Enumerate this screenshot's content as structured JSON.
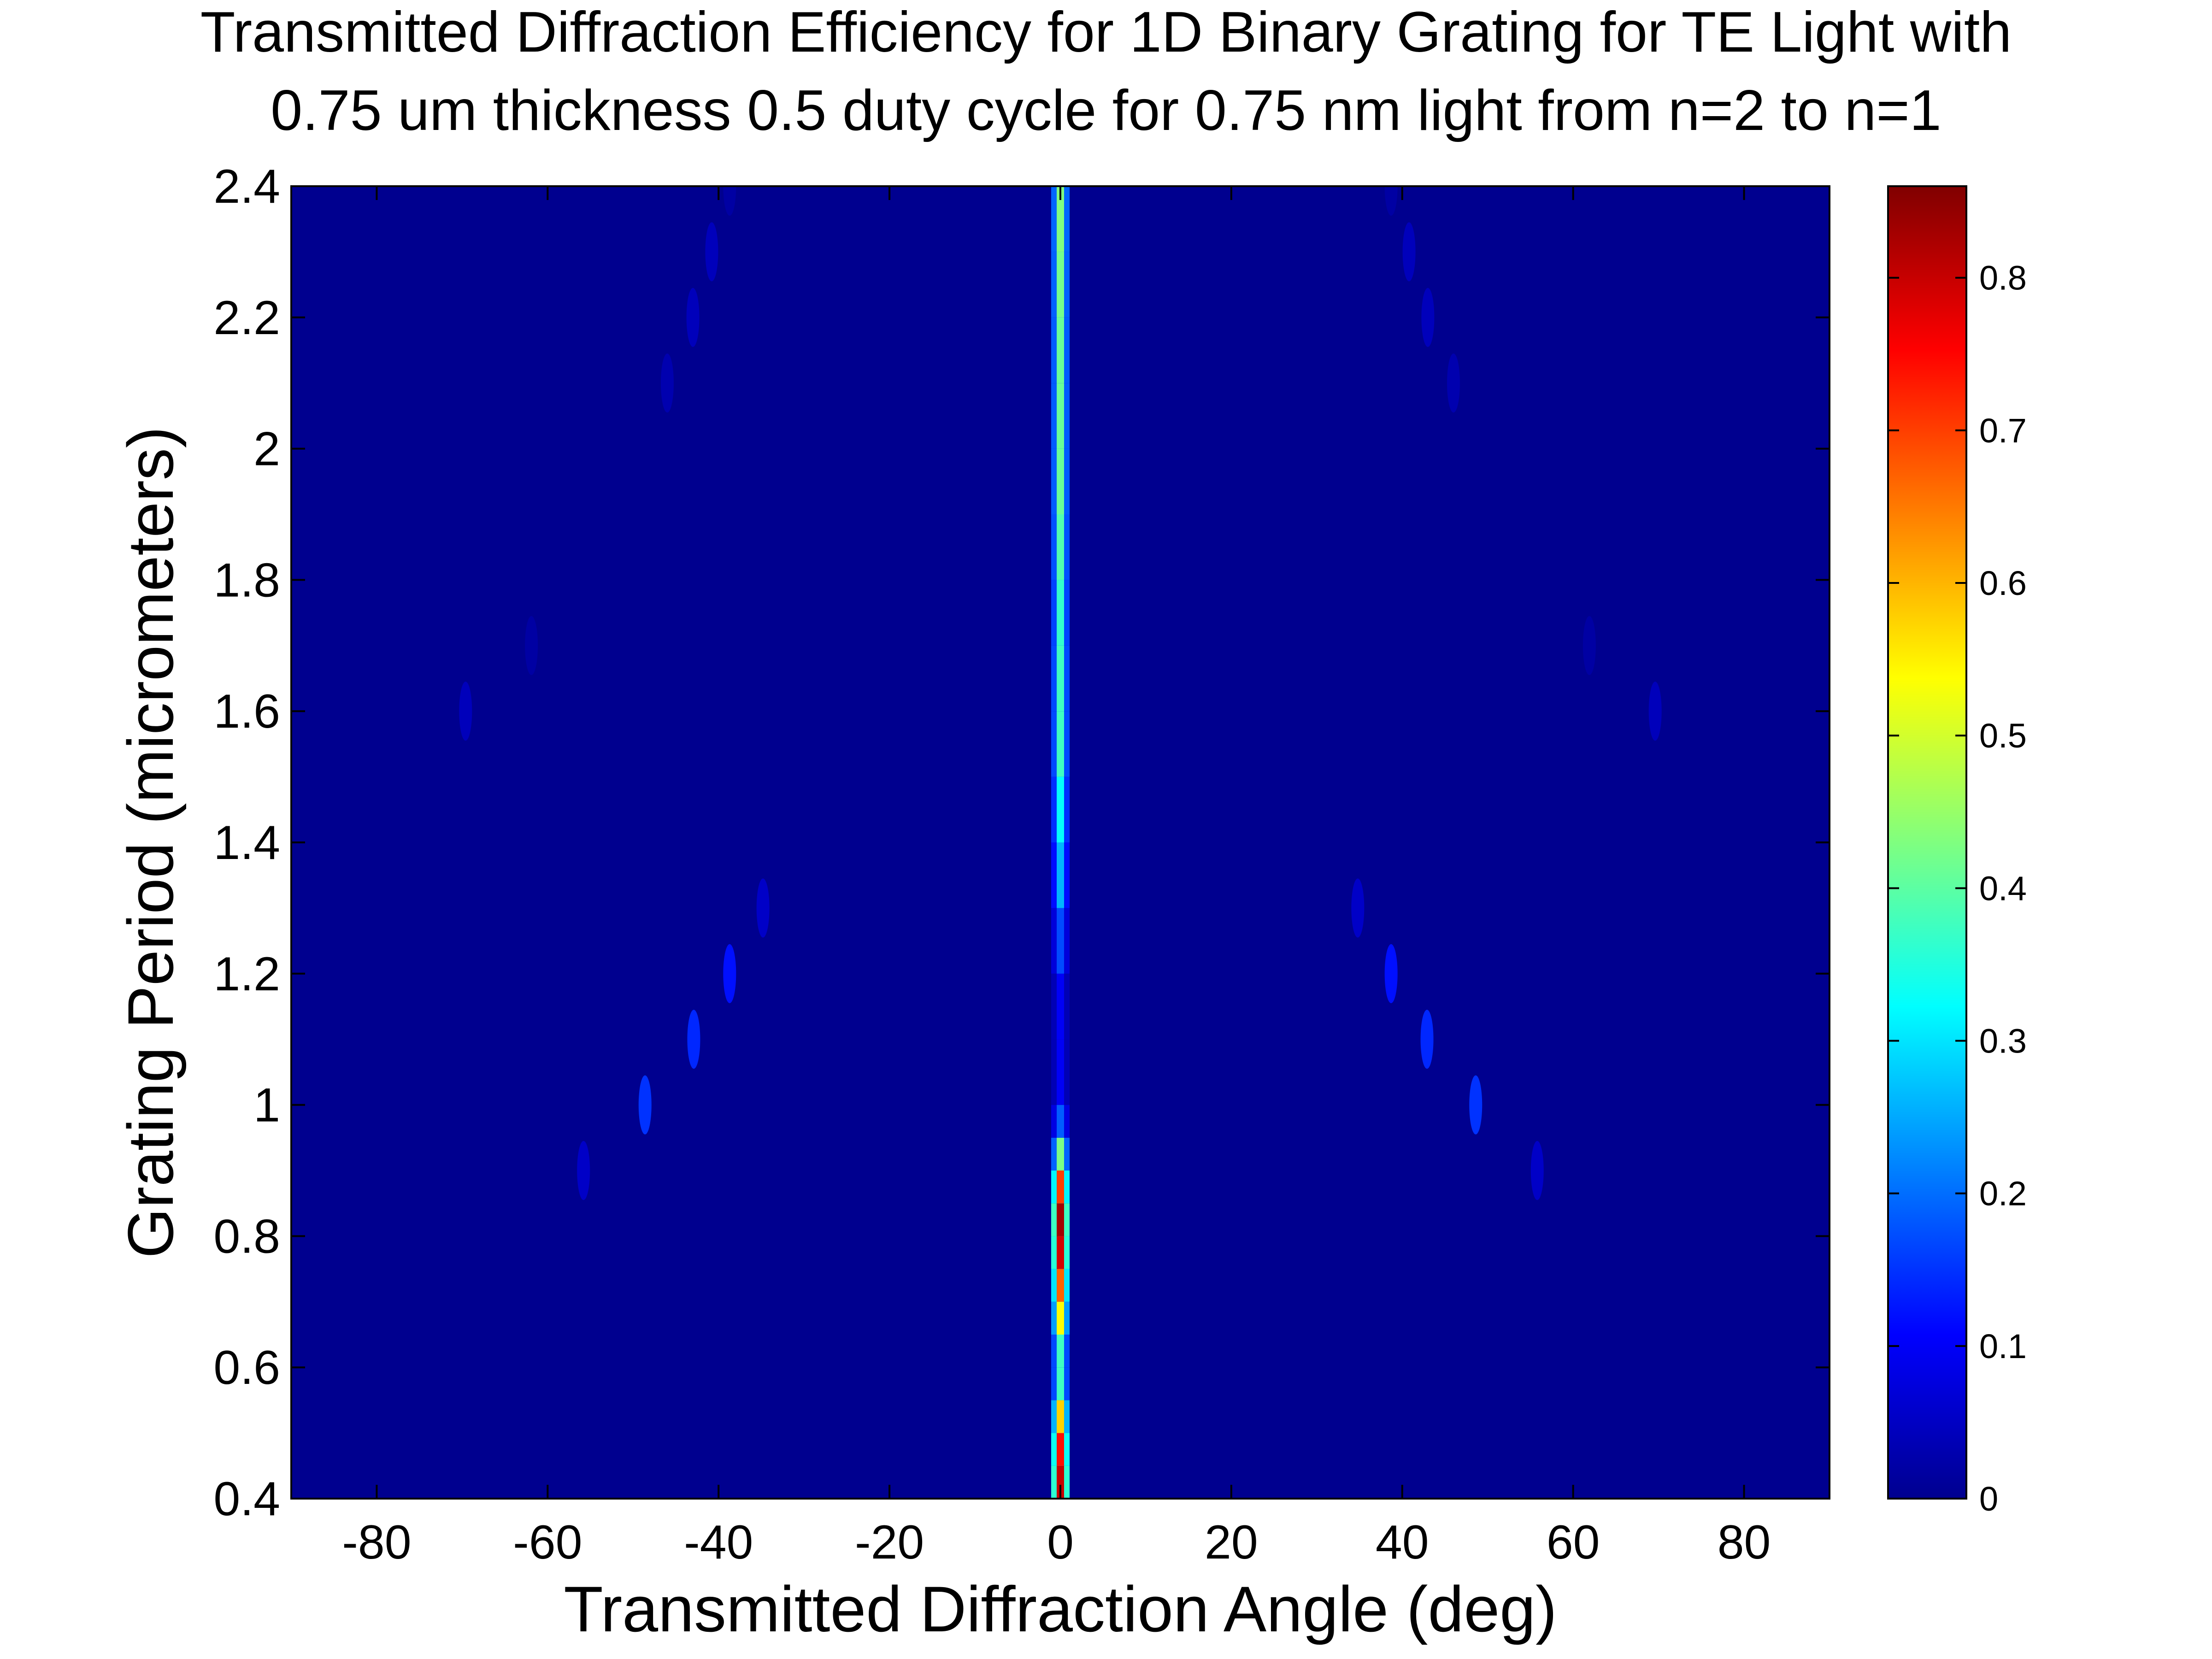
{
  "chart_data": {
    "type": "heatmap",
    "title": "Transmitted Diffraction Efficiency for 1D Binary Grating for TE Light with",
    "subtitle": "0.75 um thickness 0.5 duty cycle for 0.75 nm light from n=2 to n=1",
    "xlabel": "Transmitted Diffraction Angle (deg)",
    "ylabel": "Grating Period (micrometers)",
    "xlim": [
      -90,
      90
    ],
    "ylim": [
      0.4,
      2.4
    ],
    "x_ticks": [
      -80,
      -60,
      -40,
      -20,
      0,
      20,
      40,
      60,
      80
    ],
    "x_tick_labels": [
      "-80",
      "-60",
      "-40",
      "-20",
      "0",
      "20",
      "40",
      "60",
      "80"
    ],
    "y_ticks": [
      0.4,
      0.6,
      0.8,
      1.0,
      1.2,
      1.4,
      1.6,
      1.8,
      2.0,
      2.2,
      2.4
    ],
    "y_tick_labels": [
      "0.4",
      "0.6",
      "0.8",
      "1",
      "1.2",
      "1.4",
      "1.6",
      "1.8",
      "2",
      "2.2",
      "2.4"
    ],
    "colorbar": {
      "colormap": "jet",
      "range": [
        0,
        0.86
      ],
      "ticks": [
        0,
        0.1,
        0.2,
        0.3,
        0.4,
        0.5,
        0.6,
        0.7,
        0.8
      ],
      "tick_labels": [
        "0",
        "0.1",
        "0.2",
        "0.3",
        "0.4",
        "0.5",
        "0.6",
        "0.7",
        "0.8"
      ]
    },
    "background_value": 0,
    "zero_order": {
      "angle": 0,
      "profile": [
        {
          "period": 0.4,
          "efficiency": 0.82
        },
        {
          "period": 0.45,
          "efficiency": 0.78
        },
        {
          "period": 0.5,
          "efficiency": 0.7
        },
        {
          "period": 0.55,
          "efficiency": 0.45
        },
        {
          "period": 0.6,
          "efficiency": 0.3
        },
        {
          "period": 0.65,
          "efficiency": 0.45
        },
        {
          "period": 0.7,
          "efficiency": 0.62
        },
        {
          "period": 0.75,
          "efficiency": 0.72
        },
        {
          "period": 0.8,
          "efficiency": 0.86
        },
        {
          "period": 0.85,
          "efficiency": 0.8
        },
        {
          "period": 0.9,
          "efficiency": 0.6
        },
        {
          "period": 0.95,
          "efficiency": 0.25
        },
        {
          "period": 1.0,
          "efficiency": 0.12
        },
        {
          "period": 1.1,
          "efficiency": 0.08
        },
        {
          "period": 1.2,
          "efficiency": 0.12
        },
        {
          "period": 1.3,
          "efficiency": 0.22
        },
        {
          "period": 1.4,
          "efficiency": 0.3
        },
        {
          "period": 1.5,
          "efficiency": 0.35
        },
        {
          "period": 1.6,
          "efficiency": 0.4
        },
        {
          "period": 1.7,
          "efficiency": 0.35
        },
        {
          "period": 1.8,
          "efficiency": 0.38
        },
        {
          "period": 1.9,
          "efficiency": 0.4
        },
        {
          "period": 2.0,
          "efficiency": 0.42
        },
        {
          "period": 2.1,
          "efficiency": 0.4
        },
        {
          "period": 2.2,
          "efficiency": 0.42
        },
        {
          "period": 2.3,
          "efficiency": 0.42
        },
        {
          "period": 2.4,
          "efficiency": 0.44
        }
      ]
    },
    "spots": [
      {
        "angle": -55.8,
        "period": 0.9,
        "value": 0.06
      },
      {
        "angle": -48.6,
        "period": 1.0,
        "value": 0.15
      },
      {
        "angle": -42.9,
        "period": 1.1,
        "value": 0.14
      },
      {
        "angle": -38.7,
        "period": 1.2,
        "value": 0.12
      },
      {
        "angle": -34.8,
        "period": 1.3,
        "value": 0.06
      },
      {
        "angle": -69.6,
        "period": 1.6,
        "value": 0.05
      },
      {
        "angle": -61.9,
        "period": 1.7,
        "value": 0.03
      },
      {
        "angle": -46.0,
        "period": 2.1,
        "value": 0.04
      },
      {
        "angle": -43.0,
        "period": 2.2,
        "value": 0.05
      },
      {
        "angle": -40.8,
        "period": 2.3,
        "value": 0.05
      },
      {
        "angle": -38.7,
        "period": 2.4,
        "value": 0.03
      },
      {
        "angle": 55.8,
        "period": 0.9,
        "value": 0.06
      },
      {
        "angle": 48.6,
        "period": 1.0,
        "value": 0.15
      },
      {
        "angle": 42.9,
        "period": 1.1,
        "value": 0.14
      },
      {
        "angle": 38.7,
        "period": 1.2,
        "value": 0.12
      },
      {
        "angle": 34.8,
        "period": 1.3,
        "value": 0.06
      },
      {
        "angle": 69.6,
        "period": 1.6,
        "value": 0.05
      },
      {
        "angle": 61.9,
        "period": 1.7,
        "value": 0.03
      },
      {
        "angle": 46.0,
        "period": 2.1,
        "value": 0.04
      },
      {
        "angle": 43.0,
        "period": 2.2,
        "value": 0.05
      },
      {
        "angle": 40.8,
        "period": 2.3,
        "value": 0.05
      },
      {
        "angle": 38.7,
        "period": 2.4,
        "value": 0.03
      }
    ]
  }
}
